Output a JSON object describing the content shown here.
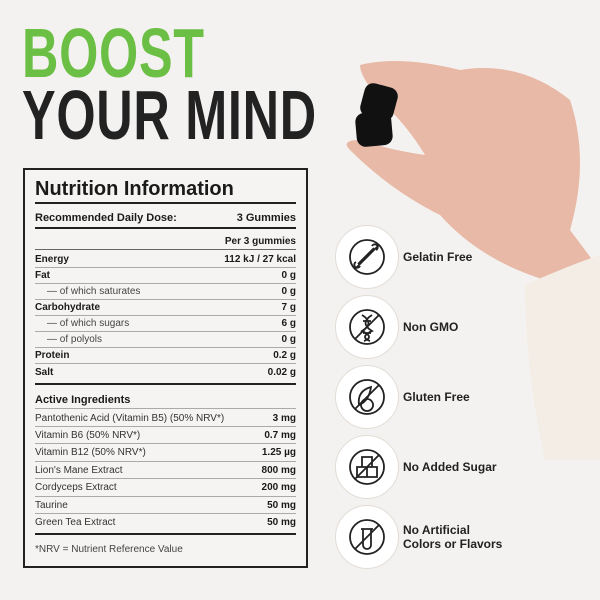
{
  "headline": {
    "line1": "BOOST",
    "line2": "YOUR MIND",
    "accent": "#6cbf45"
  },
  "nutrition": {
    "title": "Nutrition Information",
    "dose_label": "Recommended Daily Dose:",
    "dose_value": "3 Gummies",
    "per_label": "Per 3 gummies",
    "rows": [
      {
        "name": "Energy",
        "value": "112 kJ / 27 kcal",
        "bold": true
      },
      {
        "name": "Fat",
        "value": "0 g",
        "bold": true
      },
      {
        "name": "— of which saturates",
        "value": "0 g",
        "bold": false
      },
      {
        "name": "Carbohydrate",
        "value": "7 g",
        "bold": true
      },
      {
        "name": "— of which sugars",
        "value": "6 g",
        "bold": false
      },
      {
        "name": "— of polyols",
        "value": "0 g",
        "bold": false
      },
      {
        "name": "Protein",
        "value": "0.2 g",
        "bold": true
      },
      {
        "name": "Salt",
        "value": "0.02 g",
        "bold": true
      }
    ],
    "active_title": "Active Ingredients",
    "active": [
      {
        "name": "Pantothenic Acid (Vitamin B5)  (50% NRV*)",
        "value": "3 mg"
      },
      {
        "name": "Vitamin B6  (50% NRV*)",
        "value": "0.7 mg"
      },
      {
        "name": "Vitamin B12  (50% NRV*)",
        "value": "1.25 µg"
      },
      {
        "name": "Lion's Mane Extract",
        "value": "800 mg"
      },
      {
        "name": "Cordyceps Extract",
        "value": "200 mg"
      },
      {
        "name": "Taurine",
        "value": "50 mg"
      },
      {
        "name": "Green Tea Extract",
        "value": "50 mg"
      }
    ],
    "footnote": "*NRV = Nutrient Reference Value"
  },
  "badges": [
    {
      "label": "Gelatin Free",
      "icon": "no-bone-icon"
    },
    {
      "label": "Non GMO",
      "icon": "no-dna-icon"
    },
    {
      "label": "Gluten Free",
      "icon": "no-wheat-icon"
    },
    {
      "label": "No Added Sugar",
      "icon": "no-sugar-cubes-icon"
    },
    {
      "label": "No Artificial Colors or Flavors",
      "icon": "no-test-tube-icon"
    }
  ]
}
